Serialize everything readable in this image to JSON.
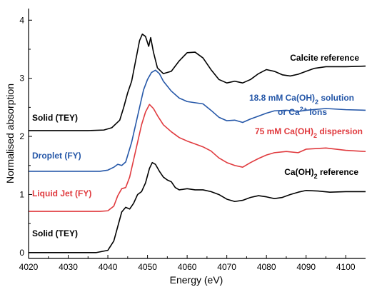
{
  "chart_data": {
    "type": "line",
    "xlabel": "Energy (eV)",
    "ylabel": "Normalised absorption",
    "xlim": [
      4020,
      4105
    ],
    "ylim": [
      -0.1,
      4.2
    ],
    "xticks": [
      4020,
      4030,
      4040,
      4050,
      4060,
      4070,
      4080,
      4090,
      4100
    ],
    "yticks": [
      0,
      1,
      2,
      3,
      4
    ],
    "grid": false,
    "colors": {
      "black": "#000000",
      "blue": "#2557a8",
      "red": "#e03a3e"
    },
    "series": [
      {
        "color": "#000000",
        "points": [
          [
            4020,
            2.1
          ],
          [
            4035,
            2.1
          ],
          [
            4039,
            2.11
          ],
          [
            4041,
            2.15
          ],
          [
            4043,
            2.28
          ],
          [
            4044,
            2.5
          ],
          [
            4045,
            2.75
          ],
          [
            4046,
            2.95
          ],
          [
            4047,
            3.3
          ],
          [
            4048,
            3.65
          ],
          [
            4048.7,
            3.76
          ],
          [
            4049.5,
            3.72
          ],
          [
            4050.3,
            3.55
          ],
          [
            4050.8,
            3.7
          ],
          [
            4051.5,
            3.45
          ],
          [
            4052.5,
            3.18
          ],
          [
            4054,
            3.08
          ],
          [
            4056,
            3.12
          ],
          [
            4058,
            3.3
          ],
          [
            4060,
            3.44
          ],
          [
            4062,
            3.45
          ],
          [
            4064,
            3.35
          ],
          [
            4066,
            3.15
          ],
          [
            4068,
            2.98
          ],
          [
            4070,
            2.92
          ],
          [
            4072,
            2.95
          ],
          [
            4074,
            2.92
          ],
          [
            4076,
            2.98
          ],
          [
            4078,
            3.08
          ],
          [
            4080,
            3.15
          ],
          [
            4082,
            3.12
          ],
          [
            4084,
            3.06
          ],
          [
            4086,
            3.04
          ],
          [
            4088,
            3.07
          ],
          [
            4090,
            3.12
          ],
          [
            4092,
            3.17
          ],
          [
            4095,
            3.2
          ],
          [
            4100,
            3.2
          ],
          [
            4105,
            3.21
          ]
        ]
      },
      {
        "color": "#2557a8",
        "points": [
          [
            4020,
            1.4
          ],
          [
            4038,
            1.4
          ],
          [
            4040,
            1.42
          ],
          [
            4041.5,
            1.47
          ],
          [
            4042.5,
            1.52
          ],
          [
            4043.5,
            1.5
          ],
          [
            4044.5,
            1.56
          ],
          [
            4046,
            1.9
          ],
          [
            4047,
            2.2
          ],
          [
            4048,
            2.5
          ],
          [
            4049,
            2.8
          ],
          [
            4050,
            2.98
          ],
          [
            4051,
            3.1
          ],
          [
            4052,
            3.14
          ],
          [
            4053,
            3.08
          ],
          [
            4054,
            2.95
          ],
          [
            4056,
            2.78
          ],
          [
            4058,
            2.66
          ],
          [
            4060,
            2.6
          ],
          [
            4062,
            2.58
          ],
          [
            4064,
            2.56
          ],
          [
            4066,
            2.45
          ],
          [
            4068,
            2.33
          ],
          [
            4070,
            2.27
          ],
          [
            4072,
            2.28
          ],
          [
            4074,
            2.24
          ],
          [
            4076,
            2.3
          ],
          [
            4078,
            2.35
          ],
          [
            4080,
            2.4
          ],
          [
            4082,
            2.44
          ],
          [
            4085,
            2.45
          ],
          [
            4088,
            2.43
          ],
          [
            4090,
            2.45
          ],
          [
            4095,
            2.48
          ],
          [
            4100,
            2.46
          ],
          [
            4105,
            2.45
          ]
        ]
      },
      {
        "color": "#e03a3e",
        "points": [
          [
            4020,
            0.71
          ],
          [
            4038,
            0.71
          ],
          [
            4040,
            0.72
          ],
          [
            4041.5,
            0.8
          ],
          [
            4042.5,
            0.98
          ],
          [
            4043.5,
            1.1
          ],
          [
            4044.5,
            1.12
          ],
          [
            4045.5,
            1.3
          ],
          [
            4046.5,
            1.6
          ],
          [
            4047.5,
            1.9
          ],
          [
            4048.5,
            2.2
          ],
          [
            4049.5,
            2.42
          ],
          [
            4050.5,
            2.55
          ],
          [
            4051.5,
            2.48
          ],
          [
            4052.5,
            2.36
          ],
          [
            4054,
            2.2
          ],
          [
            4056,
            2.08
          ],
          [
            4058,
            1.98
          ],
          [
            4060,
            1.92
          ],
          [
            4062,
            1.87
          ],
          [
            4064,
            1.82
          ],
          [
            4066,
            1.75
          ],
          [
            4068,
            1.63
          ],
          [
            4070,
            1.55
          ],
          [
            4072,
            1.5
          ],
          [
            4074,
            1.47
          ],
          [
            4076,
            1.55
          ],
          [
            4078,
            1.62
          ],
          [
            4080,
            1.68
          ],
          [
            4082,
            1.72
          ],
          [
            4085,
            1.74
          ],
          [
            4088,
            1.72
          ],
          [
            4090,
            1.78
          ],
          [
            4095,
            1.8
          ],
          [
            4100,
            1.76
          ],
          [
            4105,
            1.74
          ]
        ]
      },
      {
        "color": "#000000",
        "points": [
          [
            4020,
            0.0
          ],
          [
            4037,
            0.0
          ],
          [
            4040,
            0.04
          ],
          [
            4041.5,
            0.2
          ],
          [
            4042.5,
            0.45
          ],
          [
            4043.5,
            0.7
          ],
          [
            4044.5,
            0.78
          ],
          [
            4045.5,
            0.75
          ],
          [
            4046.5,
            0.85
          ],
          [
            4047.5,
            1.0
          ],
          [
            4048.5,
            1.05
          ],
          [
            4049.5,
            1.2
          ],
          [
            4050.5,
            1.45
          ],
          [
            4051.2,
            1.55
          ],
          [
            4052,
            1.52
          ],
          [
            4053,
            1.4
          ],
          [
            4054,
            1.3
          ],
          [
            4055,
            1.25
          ],
          [
            4056,
            1.22
          ],
          [
            4057,
            1.12
          ],
          [
            4058,
            1.08
          ],
          [
            4060,
            1.1
          ],
          [
            4062,
            1.08
          ],
          [
            4064,
            1.08
          ],
          [
            4066,
            1.05
          ],
          [
            4068,
            1.0
          ],
          [
            4070,
            0.92
          ],
          [
            4072,
            0.88
          ],
          [
            4074,
            0.9
          ],
          [
            4076,
            0.95
          ],
          [
            4078,
            0.98
          ],
          [
            4080,
            0.96
          ],
          [
            4082,
            0.93
          ],
          [
            4084,
            0.95
          ],
          [
            4086,
            1.0
          ],
          [
            4088,
            1.04
          ],
          [
            4090,
            1.07
          ],
          [
            4093,
            1.06
          ],
          [
            4096,
            1.04
          ],
          [
            4100,
            1.05
          ],
          [
            4105,
            1.05
          ]
        ]
      }
    ],
    "annotations": {
      "calcite_reference": "Calcite reference",
      "solid_tey_top": "Solid (TEY)",
      "solution_line1_pre": "18.8 mM Ca(OH)",
      "solution_line1_sub": "2",
      "solution_line1_post": " solution",
      "solution_line2_pre": "or Ca",
      "solution_line2_sup": "2+",
      "solution_line2_post": " ions",
      "dispersion_pre": "75 mM Ca(OH)",
      "dispersion_sub": "2",
      "dispersion_post": " dispersion",
      "droplet": "Droplet (FY)",
      "caoh2_ref_pre": "Ca(OH)",
      "caoh2_ref_sub": "2",
      "caoh2_ref_post": " reference",
      "liquid_jet": "Liquid Jet (FY)",
      "solid_tey_bottom": "Solid (TEY)"
    }
  }
}
